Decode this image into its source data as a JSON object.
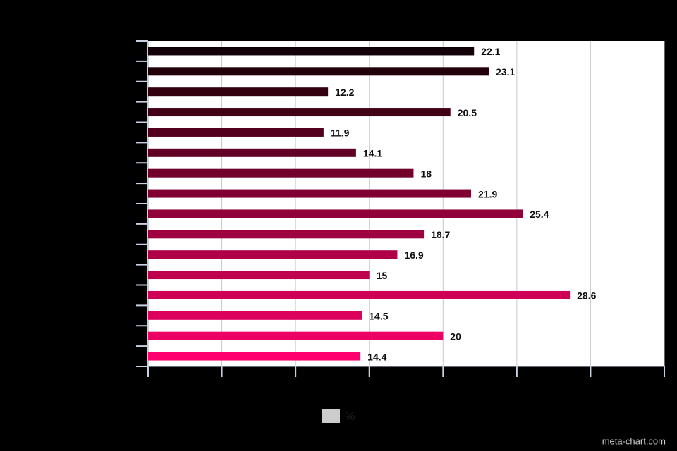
{
  "chart_data": {
    "type": "barh",
    "series": [
      {
        "name": "%",
        "color": "#cccccc",
        "values": [
          22.1,
          23.1,
          12.2,
          20.5,
          11.9,
          14.1,
          18,
          21.9,
          25.4,
          18.7,
          16.9,
          15,
          28.6,
          14.5,
          20,
          14.4
        ],
        "colors": [
          "#140008",
          "#230009",
          "#33000f",
          "#420016",
          "#52001d",
          "#610024",
          "#71002b",
          "#800032",
          "#900039",
          "#9f0040",
          "#af0047",
          "#be004e",
          "#ce0055",
          "#dd005c",
          "#ed0063",
          "#ff006e"
        ]
      }
    ],
    "xlim": [
      0,
      35
    ],
    "xticks": [
      0,
      5,
      10,
      15,
      20,
      25,
      30,
      35
    ],
    "grid": true,
    "legend": "bottom",
    "credit": "meta-chart.com"
  }
}
